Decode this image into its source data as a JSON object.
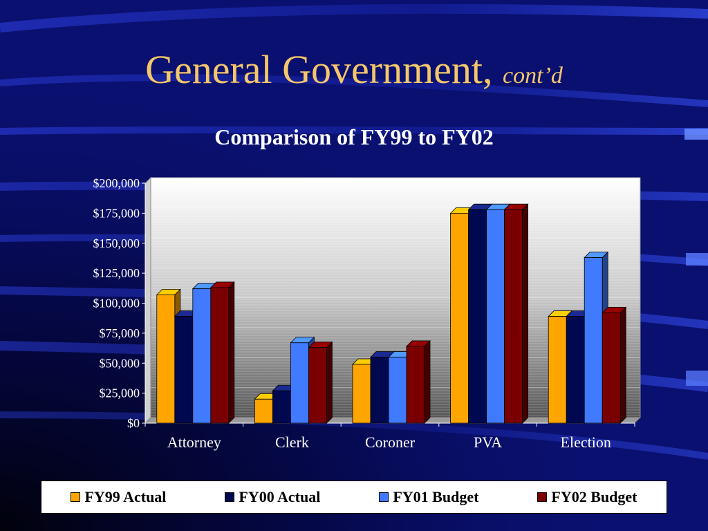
{
  "slide": {
    "title": "General Government,",
    "title_suffix": "cont’d"
  },
  "colors": {
    "background": "#0a1070",
    "title": "#f5c76a",
    "fy99": "#ffa500",
    "fy00": "#000850",
    "fy01": "#3f7aff",
    "fy02": "#7a0000"
  },
  "chart_data": {
    "type": "bar",
    "title": "Comparison of FY99 to FY02",
    "categories": [
      "Attorney",
      "Clerk",
      "Coroner",
      "PVA",
      "Election"
    ],
    "series": [
      {
        "name": "FY99 Actual",
        "color": "#ffa500",
        "values": [
          107000,
          20000,
          49000,
          175000,
          89000
        ]
      },
      {
        "name": "FY00 Actual",
        "color": "#000850",
        "values": [
          89000,
          27000,
          55000,
          178000,
          89000
        ]
      },
      {
        "name": "FY01 Budget",
        "color": "#3f7aff",
        "values": [
          112000,
          67000,
          55000,
          178000,
          138000
        ]
      },
      {
        "name": "FY02 Budget",
        "color": "#7a0000",
        "values": [
          113000,
          63000,
          64000,
          178000,
          92000
        ]
      }
    ],
    "yticks": [
      "$0",
      "$25,000",
      "$50,000",
      "$75,000",
      "$100,000",
      "$125,000",
      "$150,000",
      "$175,000",
      "$200,000"
    ],
    "ylim": [
      0,
      200000
    ],
    "legend": "bottom",
    "grid": true
  }
}
